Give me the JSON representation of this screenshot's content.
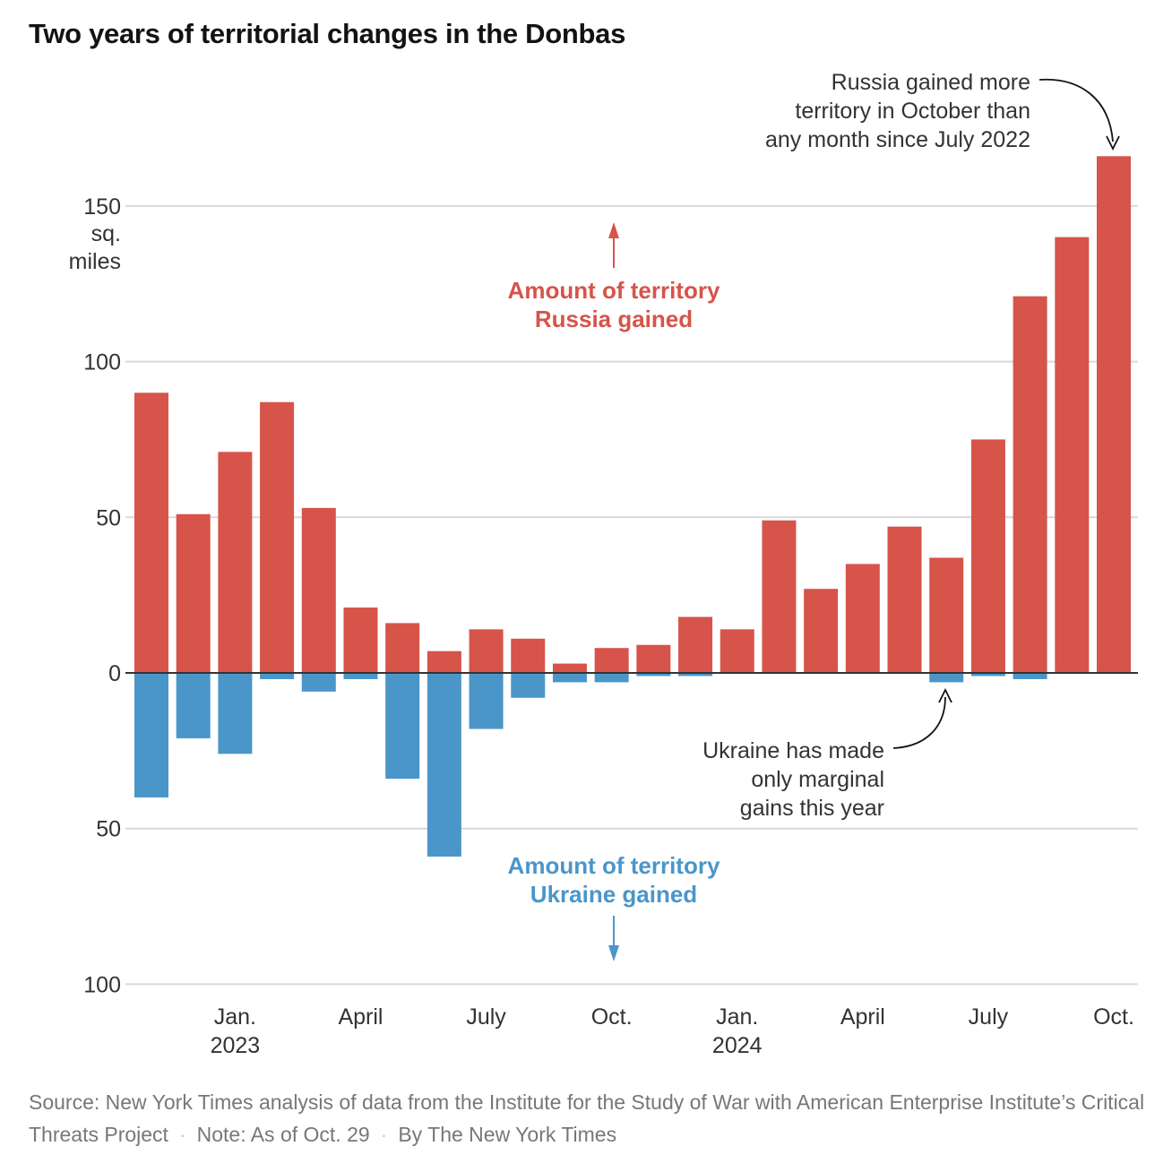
{
  "title": "Two years of territorial changes in the Donbas",
  "colors": {
    "russia": "#d6544a",
    "ukraine": "#4a96c9",
    "grid": "#d9d9d9",
    "axis": "#333333"
  },
  "chart_data": {
    "type": "bar",
    "title": "Two years of territorial changes in the Donbas",
    "unit_label": [
      "sq.",
      "miles"
    ],
    "ylim": [
      -100,
      165
    ],
    "y_ticks": [
      {
        "value": 150,
        "label": "150"
      },
      {
        "value": 100,
        "label": "100"
      },
      {
        "value": 50,
        "label": "50"
      },
      {
        "value": 0,
        "label": "0"
      },
      {
        "value": -50,
        "label": "50"
      },
      {
        "value": -100,
        "label": "100"
      }
    ],
    "x_ticks": [
      {
        "month": "2023-01",
        "label": "Jan.",
        "year": "2023"
      },
      {
        "month": "2023-04",
        "label": "April",
        "year": ""
      },
      {
        "month": "2023-07",
        "label": "July",
        "year": ""
      },
      {
        "month": "2023-10",
        "label": "Oct.",
        "year": ""
      },
      {
        "month": "2024-01",
        "label": "Jan.",
        "year": "2024"
      },
      {
        "month": "2024-04",
        "label": "April",
        "year": ""
      },
      {
        "month": "2024-07",
        "label": "July",
        "year": ""
      },
      {
        "month": "2024-10",
        "label": "Oct.",
        "year": ""
      }
    ],
    "categories": [
      "2022-11",
      "2022-12",
      "2023-01",
      "2023-02",
      "2023-03",
      "2023-04",
      "2023-05",
      "2023-06",
      "2023-07",
      "2023-08",
      "2023-09",
      "2023-10",
      "2023-11",
      "2023-12",
      "2024-01",
      "2024-02",
      "2024-03",
      "2024-04",
      "2024-05",
      "2024-06",
      "2024-07",
      "2024-08",
      "2024-09",
      "2024-10"
    ],
    "series": [
      {
        "name": "Amount of territory Russia gained",
        "values": [
          90,
          51,
          71,
          87,
          53,
          21,
          16,
          7,
          14,
          11,
          3,
          8,
          9,
          18,
          14,
          49,
          27,
          35,
          47,
          37,
          75,
          121,
          140,
          166
        ]
      },
      {
        "name": "Amount of territory Ukraine gained",
        "values": [
          40,
          21,
          26,
          2,
          6,
          2,
          34,
          59,
          18,
          8,
          3,
          3,
          1,
          1,
          0,
          0,
          0,
          0,
          0,
          3,
          1,
          2,
          0,
          0
        ]
      }
    ]
  },
  "annotations": {
    "russia_label": [
      "Amount of territory",
      "Russia gained"
    ],
    "ukraine_label": [
      "Amount of territory",
      "Ukraine gained"
    ],
    "october_note": [
      "Russia gained more",
      "territory in October than",
      "any month since July 2022"
    ],
    "ukraine_note": [
      "Ukraine has made",
      "only marginal",
      "gains this year"
    ]
  },
  "footer": {
    "source": "Source: New York Times analysis of data from the Institute for the Study of War with American Enterprise Institute’s Critical Threats Project",
    "note": "Note: As of Oct. 29",
    "byline": "By The New York Times"
  }
}
